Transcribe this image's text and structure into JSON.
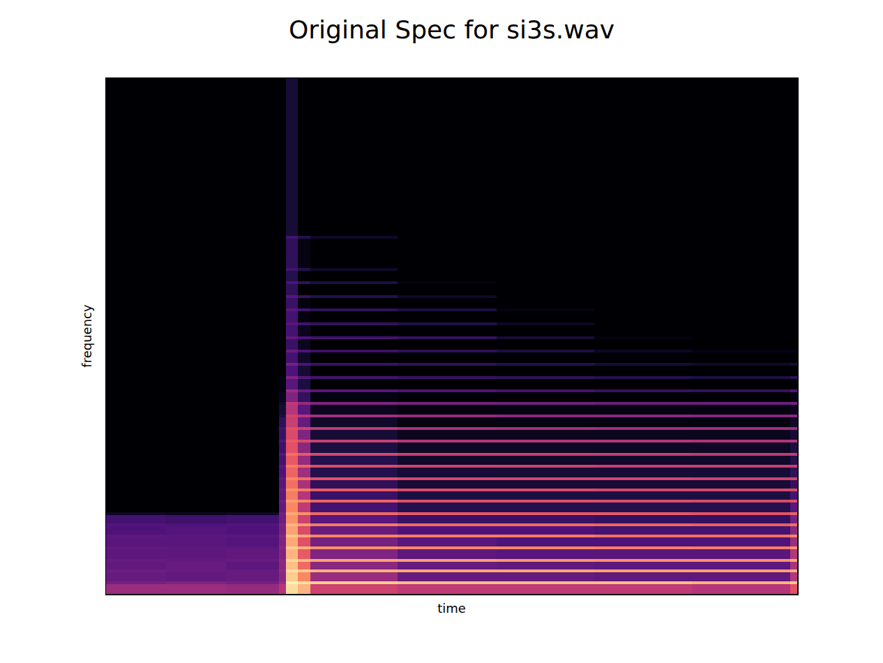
{
  "chart_data": {
    "type": "heatmap",
    "title": "Original Spec for si3s.wav",
    "x_label": "time",
    "y_label": "frequency",
    "x": [
      0,
      86,
      172,
      248,
      258,
      275,
      293,
      418,
      560,
      700,
      840,
      981,
      991
    ],
    "y": [
      0,
      14,
      18,
      31,
      35,
      46,
      50,
      64,
      68,
      81,
      85,
      97,
      101,
      113,
      117,
      131,
      135,
      147,
      151,
      163,
      167,
      181,
      185,
      198,
      202,
      217,
      221,
      235,
      239,
      253,
      257,
      271,
      275,
      289,
      293,
      308,
      312,
      327,
      331,
      346,
      350,
      365,
      369,
      385,
      389,
      405,
      409,
      424,
      428,
      444,
      448,
      463,
      467,
      509,
      513,
      739
    ],
    "z": [
      [
        -45,
        -45,
        -46,
        -40,
        -5,
        -12,
        -35,
        -38,
        -38,
        -38,
        -40,
        -30
      ],
      [
        -52,
        -50,
        -52,
        -45,
        -2,
        -5,
        -8,
        -10,
        -10,
        -10,
        -12,
        -8
      ],
      [
        -55,
        -56,
        -55,
        -48,
        -8,
        -20,
        -45,
        -55,
        -55,
        -56,
        -56,
        -40
      ],
      [
        -54,
        -55,
        -55,
        -46,
        -5,
        -8,
        -12,
        -14,
        -14,
        -15,
        -15,
        -12
      ],
      [
        -56,
        -55,
        -57,
        -48,
        -10,
        -25,
        -48,
        -55,
        -56,
        -57,
        -57,
        -42
      ],
      [
        -55,
        -56,
        -55,
        -47,
        -6,
        -10,
        -15,
        -16,
        -17,
        -18,
        -18,
        -14
      ],
      [
        -57,
        -57,
        -56,
        -50,
        -12,
        -28,
        -50,
        -57,
        -58,
        -58,
        -58,
        -40
      ],
      [
        -56,
        -57,
        -57,
        -48,
        -8,
        -12,
        -18,
        -20,
        -20,
        -21,
        -22,
        -18
      ],
      [
        -58,
        -58,
        -59,
        -50,
        -14,
        -30,
        -52,
        -58,
        -60,
        -60,
        -60,
        -45
      ],
      [
        -57,
        -58,
        -58,
        -48,
        -9,
        -14,
        -20,
        -22,
        -22,
        -24,
        -24,
        -20
      ],
      [
        -60,
        -59,
        -60,
        -52,
        -15,
        -32,
        -55,
        -60,
        -60,
        -62,
        -62,
        -48
      ],
      [
        -59,
        -60,
        -59,
        -50,
        -12,
        -16,
        -22,
        -25,
        -25,
        -26,
        -27,
        -24
      ],
      [
        -62,
        -63,
        -62,
        -54,
        -18,
        -35,
        -58,
        -64,
        -64,
        -65,
        -65,
        -52
      ],
      [
        -75,
        -76,
        -75,
        -52,
        -14,
        -18,
        -25,
        -28,
        -28,
        -28,
        -29,
        -26
      ],
      [
        -80,
        -80,
        -80,
        -56,
        -20,
        -38,
        -62,
        -68,
        -68,
        -68,
        -68,
        -58
      ],
      [
        -80,
        -80,
        -80,
        -54,
        -16,
        -20,
        -26,
        -30,
        -30,
        -31,
        -32,
        -30
      ],
      [
        -80,
        -80,
        -80,
        -57,
        -22,
        -40,
        -64,
        -70,
        -70,
        -70,
        -70,
        -62
      ],
      [
        -80,
        -80,
        -80,
        -55,
        -18,
        -22,
        -28,
        -32,
        -32,
        -33,
        -33,
        -32
      ],
      [
        -80,
        -80,
        -80,
        -58,
        -24,
        -42,
        -66,
        -72,
        -72,
        -72,
        -72,
        -65
      ],
      [
        -80,
        -80,
        -80,
        -56,
        -20,
        -24,
        -30,
        -33,
        -34,
        -34,
        -35,
        -34
      ],
      [
        -80,
        -80,
        -80,
        -60,
        -26,
        -44,
        -68,
        -72,
        -72,
        -72,
        -72,
        -66
      ],
      [
        -80,
        -80,
        -80,
        -57,
        -22,
        -26,
        -32,
        -35,
        -35,
        -36,
        -36,
        -36
      ],
      [
        -80,
        -80,
        -80,
        -62,
        -28,
        -46,
        -68,
        -74,
        -74,
        -74,
        -74,
        -68
      ],
      [
        -80,
        -80,
        -80,
        -58,
        -24,
        -28,
        -33,
        -36,
        -36,
        -37,
        -38,
        -37
      ],
      [
        -80,
        -80,
        -80,
        -63,
        -30,
        -48,
        -70,
        -75,
        -75,
        -75,
        -75,
        -70
      ],
      [
        -80,
        -80,
        -80,
        -60,
        -28,
        -32,
        -36,
        -40,
        -40,
        -40,
        -41,
        -40
      ],
      [
        -80,
        -80,
        -80,
        -64,
        -32,
        -50,
        -72,
        -76,
        -76,
        -76,
        -76,
        -72
      ],
      [
        -80,
        -80,
        -80,
        -62,
        -30,
        -35,
        -38,
        -42,
        -43,
        -44,
        -44,
        -44
      ],
      [
        -80,
        -80,
        -80,
        -66,
        -36,
        -55,
        -74,
        -78,
        -78,
        -78,
        -78,
        -74
      ],
      [
        -80,
        -80,
        -80,
        -70,
        -34,
        -40,
        -44,
        -46,
        -48,
        -48,
        -49,
        -48
      ],
      [
        -80,
        -80,
        -80,
        -72,
        -40,
        -58,
        -76,
        -78,
        -78,
        -78,
        -78,
        -76
      ],
      [
        -80,
        -80,
        -80,
        -74,
        -38,
        -46,
        -50,
        -52,
        -53,
        -54,
        -54,
        -52
      ],
      [
        -80,
        -80,
        -80,
        -76,
        -50,
        -65,
        -78,
        -80,
        -80,
        -80,
        -80,
        -78
      ],
      [
        -80,
        -80,
        -80,
        -78,
        -45,
        -55,
        -58,
        -60,
        -62,
        -64,
        -65,
        -60
      ],
      [
        -80,
        -80,
        -80,
        -78,
        -58,
        -70,
        -80,
        -80,
        -80,
        -80,
        -80,
        -80
      ],
      [
        -80,
        -80,
        -80,
        -78,
        -50,
        -58,
        -62,
        -64,
        -66,
        -68,
        -70,
        -66
      ],
      [
        -80,
        -80,
        -80,
        -80,
        -60,
        -72,
        -80,
        -80,
        -80,
        -80,
        -80,
        -80
      ],
      [
        -80,
        -80,
        -80,
        -80,
        -52,
        -60,
        -64,
        -66,
        -68,
        -72,
        -74,
        -72
      ],
      [
        -80,
        -80,
        -80,
        -80,
        -62,
        -74,
        -80,
        -80,
        -80,
        -80,
        -80,
        -80
      ],
      [
        -80,
        -80,
        -80,
        -80,
        -55,
        -60,
        -64,
        -66,
        -70,
        -75,
        -78,
        -78
      ],
      [
        -80,
        -80,
        -80,
        -80,
        -64,
        -76,
        -80,
        -80,
        -80,
        -80,
        -80,
        -80
      ],
      [
        -80,
        -80,
        -80,
        -80,
        -56,
        -60,
        -62,
        -65,
        -72,
        -78,
        -80,
        -80
      ],
      [
        -80,
        -80,
        -80,
        -80,
        -62,
        -76,
        -80,
        -80,
        -80,
        -80,
        -80,
        -80
      ],
      [
        -80,
        -80,
        -80,
        -80,
        -58,
        -62,
        -65,
        -68,
        -75,
        -80,
        -80,
        -80
      ],
      [
        -80,
        -80,
        -80,
        -80,
        -62,
        -78,
        -80,
        -80,
        -80,
        -80,
        -80,
        -80
      ],
      [
        -80,
        -80,
        -80,
        -80,
        -58,
        -62,
        -66,
        -70,
        -78,
        -80,
        -80,
        -80
      ],
      [
        -80,
        -80,
        -80,
        -80,
        -64,
        -78,
        -80,
        -80,
        -80,
        -80,
        -80,
        -80
      ],
      [
        -80,
        -80,
        -80,
        -80,
        -58,
        -64,
        -68,
        -74,
        -80,
        -80,
        -80,
        -80
      ],
      [
        -80,
        -80,
        -80,
        -80,
        -66,
        -80,
        -80,
        -80,
        -80,
        -80,
        -80,
        -80
      ],
      [
        -80,
        -80,
        -80,
        -80,
        -60,
        -66,
        -70,
        -78,
        -80,
        -80,
        -80,
        -80
      ],
      [
        -80,
        -80,
        -80,
        -80,
        -68,
        -80,
        -80,
        -80,
        -80,
        -80,
        -80,
        -80
      ],
      [
        -80,
        -80,
        -80,
        -80,
        -62,
        -68,
        -74,
        -80,
        -80,
        -80,
        -80,
        -80
      ],
      [
        -80,
        -80,
        -80,
        -80,
        -66,
        -78,
        -80,
        -80,
        -80,
        -80,
        -80,
        -80
      ],
      [
        -80,
        -80,
        -80,
        -80,
        -62,
        -68,
        -74,
        -80,
        -80,
        -80,
        -80,
        -80
      ],
      [
        -80,
        -80,
        -80,
        -80,
        -72,
        -80,
        -80,
        -80,
        -80,
        -80,
        -80,
        -80
      ]
    ],
    "xlim": [
      0,
      991
    ],
    "ylim": [
      0,
      739
    ],
    "zlim": [
      -80,
      0
    ],
    "tick_labels": false
  }
}
